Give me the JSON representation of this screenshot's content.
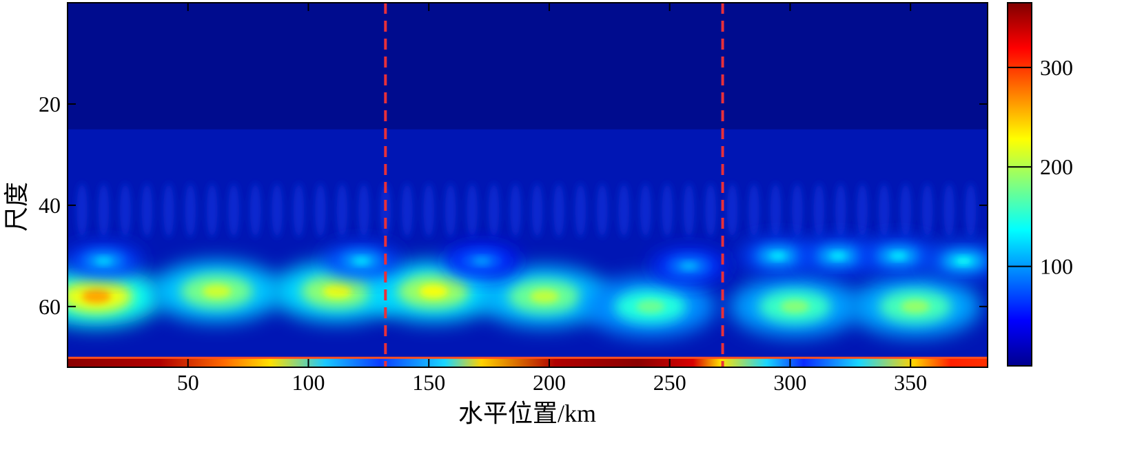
{
  "chart_data": {
    "type": "heatmap",
    "title": "",
    "xlabel": "水平位置/km",
    "ylabel": "尺度",
    "xlim": [
      0,
      382
    ],
    "ylim": [
      72,
      0
    ],
    "x_ticks": [
      50,
      100,
      150,
      200,
      250,
      300,
      350
    ],
    "y_ticks": [
      20,
      40,
      60
    ],
    "colorbar": {
      "range": [
        0,
        365
      ],
      "ticks": [
        100,
        200,
        300
      ],
      "colormap": "jet"
    },
    "grid": false,
    "legend": "none",
    "vertical_markers": {
      "x": [
        132,
        272
      ],
      "style": "dashed",
      "color": "#e8303a"
    },
    "intensity_note_values": {
      "low_scale_band_top": 25,
      "bottom_edge_band": [
        70,
        72
      ]
    },
    "blobs": [
      {
        "x": 12,
        "scale": 58,
        "value": 260
      },
      {
        "x": 62,
        "scale": 57,
        "value": 210
      },
      {
        "x": 112,
        "scale": 57,
        "value": 220
      },
      {
        "x": 152,
        "scale": 57,
        "value": 225
      },
      {
        "x": 198,
        "scale": 58,
        "value": 205
      },
      {
        "x": 242,
        "scale": 60,
        "value": 175
      },
      {
        "x": 302,
        "scale": 60,
        "value": 185
      },
      {
        "x": 352,
        "scale": 60,
        "value": 190
      },
      {
        "x": 15,
        "scale": 51,
        "value": 120
      },
      {
        "x": 122,
        "scale": 51,
        "value": 125
      },
      {
        "x": 295,
        "scale": 50,
        "value": 130
      },
      {
        "x": 320,
        "scale": 50,
        "value": 130
      },
      {
        "x": 345,
        "scale": 50,
        "value": 130
      },
      {
        "x": 372,
        "scale": 51,
        "value": 140
      },
      {
        "x": 258,
        "scale": 52,
        "value": 110
      },
      {
        "x": 172,
        "scale": 51,
        "value": 100
      }
    ]
  }
}
